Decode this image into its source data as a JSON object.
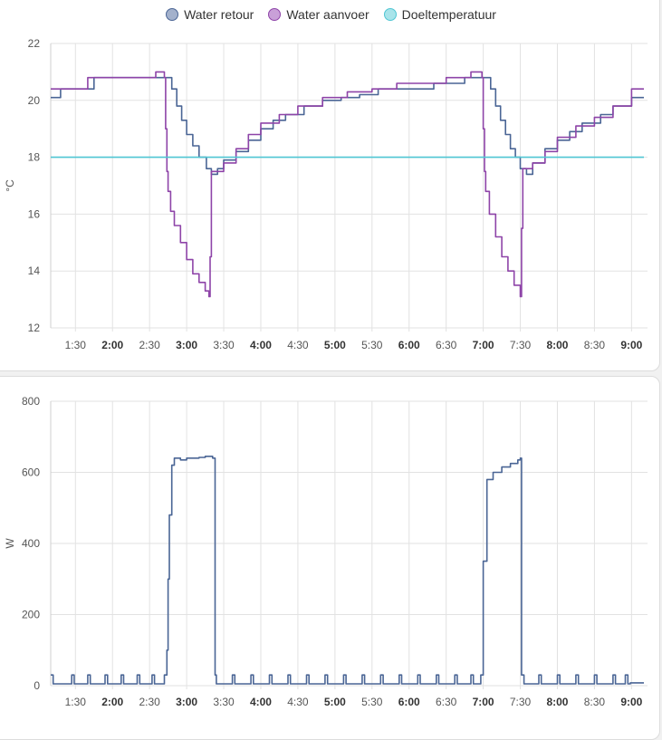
{
  "colors": {
    "retour": "#4a6595",
    "aanvoer": "#8e44a8",
    "doel": "#4fc6d3",
    "power": "#4a6595",
    "grid": "#e2e2e2"
  },
  "chart_data": [
    {
      "type": "line",
      "ylabel": "°C",
      "ylim": [
        12,
        22
      ],
      "yticks": [
        "22",
        "20",
        "18",
        "16",
        "14",
        "12"
      ],
      "xlim": [
        "1:10",
        "9:10"
      ],
      "xticks": [
        {
          "t": "1:30",
          "label": "1:30",
          "major": false
        },
        {
          "t": "2:00",
          "label": "2:00",
          "major": true
        },
        {
          "t": "2:30",
          "label": "2:30",
          "major": false
        },
        {
          "t": "3:00",
          "label": "3:00",
          "major": true
        },
        {
          "t": "3:30",
          "label": "3:30",
          "major": false
        },
        {
          "t": "4:00",
          "label": "4:00",
          "major": true
        },
        {
          "t": "4:30",
          "label": "4:30",
          "major": false
        },
        {
          "t": "5:00",
          "label": "5:00",
          "major": true
        },
        {
          "t": "5:30",
          "label": "5:30",
          "major": false
        },
        {
          "t": "6:00",
          "label": "6:00",
          "major": true
        },
        {
          "t": "6:30",
          "label": "6:30",
          "major": false
        },
        {
          "t": "7:00",
          "label": "7:00",
          "major": true
        },
        {
          "t": "7:30",
          "label": "7:30",
          "major": false
        },
        {
          "t": "8:00",
          "label": "8:00",
          "major": true
        },
        {
          "t": "8:30",
          "label": "8:30",
          "major": false
        },
        {
          "t": "9:00",
          "label": "9:00",
          "major": true
        }
      ],
      "legend": [
        "Water retour",
        "Water aanvoer",
        "Doeltemperatuur"
      ],
      "series": [
        {
          "name": "Water retour",
          "color": "#4a6595",
          "x": [
            "1:10",
            "1:18",
            "1:30",
            "1:45",
            "2:00",
            "2:15",
            "2:30",
            "2:42",
            "2:48",
            "2:52",
            "2:56",
            "3:00",
            "3:05",
            "3:10",
            "3:16",
            "3:20",
            "3:25",
            "3:30",
            "3:40",
            "3:50",
            "4:00",
            "4:10",
            "4:20",
            "4:35",
            "4:50",
            "5:05",
            "5:20",
            "5:35",
            "5:50",
            "6:05",
            "6:20",
            "6:35",
            "6:45",
            "6:55",
            "7:02",
            "7:06",
            "7:10",
            "7:14",
            "7:18",
            "7:22",
            "7:26",
            "7:30",
            "7:35",
            "7:40",
            "7:50",
            "8:00",
            "8:10",
            "8:20",
            "8:35",
            "8:45",
            "9:00",
            "9:10"
          ],
          "y": [
            20.1,
            20.4,
            20.4,
            20.8,
            20.8,
            20.8,
            20.8,
            20.8,
            20.4,
            19.8,
            19.3,
            18.8,
            18.4,
            18.0,
            17.6,
            17.4,
            17.6,
            17.9,
            18.2,
            18.6,
            19.0,
            19.3,
            19.5,
            19.8,
            20.0,
            20.1,
            20.2,
            20.4,
            20.4,
            20.4,
            20.6,
            20.6,
            20.8,
            20.8,
            20.8,
            20.4,
            19.8,
            19.3,
            18.8,
            18.3,
            18.0,
            17.6,
            17.4,
            17.8,
            18.3,
            18.6,
            18.9,
            19.2,
            19.5,
            19.8,
            20.1,
            20.1
          ]
        },
        {
          "name": "Water aanvoer",
          "color": "#8e44a8",
          "x": [
            "1:10",
            "1:20",
            "1:40",
            "2:00",
            "2:20",
            "2:35",
            "2:42",
            "2:43",
            "2:44",
            "2:45",
            "2:47",
            "2:50",
            "2:55",
            "3:00",
            "3:05",
            "3:10",
            "3:15",
            "3:18",
            "3:19",
            "3:20",
            "3:30",
            "3:40",
            "3:50",
            "4:00",
            "4:15",
            "4:30",
            "4:50",
            "5:10",
            "5:30",
            "5:50",
            "6:10",
            "6:30",
            "6:50",
            "6:59",
            "7:00",
            "7:01",
            "7:02",
            "7:05",
            "7:10",
            "7:15",
            "7:20",
            "7:25",
            "7:30",
            "7:31",
            "7:32",
            "7:40",
            "7:50",
            "8:00",
            "8:15",
            "8:30",
            "8:45",
            "9:00",
            "9:10"
          ],
          "y": [
            20.4,
            20.4,
            20.8,
            20.8,
            20.8,
            21.0,
            20.8,
            19.0,
            17.5,
            16.8,
            16.1,
            15.6,
            15.0,
            14.4,
            13.9,
            13.6,
            13.3,
            13.1,
            14.5,
            17.5,
            17.8,
            18.3,
            18.8,
            19.2,
            19.5,
            19.8,
            20.1,
            20.3,
            20.4,
            20.6,
            20.6,
            20.8,
            21.0,
            20.8,
            19.0,
            17.5,
            16.8,
            16.0,
            15.2,
            14.5,
            14.0,
            13.5,
            13.1,
            15.5,
            17.6,
            17.8,
            18.2,
            18.7,
            19.1,
            19.4,
            19.8,
            20.4,
            20.4
          ]
        },
        {
          "name": "Doeltemperatuur",
          "color": "#4fc6d3",
          "x": [
            "1:10",
            "9:10"
          ],
          "y": [
            18,
            18
          ]
        }
      ]
    },
    {
      "type": "line",
      "ylabel": "W",
      "ylim": [
        0,
        800
      ],
      "yticks": [
        "800",
        "600",
        "400",
        "200",
        "0"
      ],
      "xlim": [
        "1:10",
        "9:10"
      ],
      "series": [
        {
          "name": "",
          "color": "#4a6595",
          "x": [
            "1:10",
            "1:12",
            "1:14",
            "1:25",
            "1:27",
            "1:29",
            "1:38",
            "1:40",
            "1:42",
            "1:52",
            "1:54",
            "1:56",
            "2:05",
            "2:07",
            "2:09",
            "2:18",
            "2:20",
            "2:22",
            "2:30",
            "2:32",
            "2:34",
            "2:40",
            "2:42",
            "2:44",
            "2:45",
            "2:46",
            "2:48",
            "2:50",
            "2:55",
            "3:00",
            "3:05",
            "3:10",
            "3:15",
            "3:20",
            "3:21",
            "3:23",
            "3:24",
            "3:35",
            "3:37",
            "3:39",
            "3:50",
            "3:52",
            "3:54",
            "4:05",
            "4:07",
            "4:09",
            "4:20",
            "4:22",
            "4:24",
            "4:35",
            "4:37",
            "4:39",
            "4:50",
            "4:52",
            "4:54",
            "5:05",
            "5:07",
            "5:09",
            "5:20",
            "5:22",
            "5:24",
            "5:35",
            "5:37",
            "5:39",
            "5:50",
            "5:52",
            "5:54",
            "6:05",
            "6:07",
            "6:09",
            "6:20",
            "6:22",
            "6:24",
            "6:35",
            "6:37",
            "6:39",
            "6:48",
            "6:50",
            "6:52",
            "6:56",
            "6:58",
            "7:00",
            "7:03",
            "7:08",
            "7:15",
            "7:22",
            "7:28",
            "7:30",
            "7:31",
            "7:33",
            "7:34",
            "7:45",
            "7:47",
            "7:49",
            "8:00",
            "8:02",
            "8:04",
            "8:15",
            "8:17",
            "8:19",
            "8:30",
            "8:32",
            "8:34",
            "8:45",
            "8:47",
            "8:49",
            "8:55",
            "8:57",
            "8:59",
            "9:10"
          ],
          "y": [
            30,
            5,
            5,
            5,
            30,
            5,
            5,
            30,
            5,
            5,
            30,
            5,
            5,
            30,
            5,
            5,
            30,
            5,
            5,
            30,
            5,
            5,
            30,
            100,
            300,
            480,
            620,
            640,
            635,
            640,
            640,
            642,
            645,
            645,
            640,
            30,
            5,
            5,
            30,
            5,
            5,
            30,
            5,
            5,
            30,
            5,
            5,
            30,
            5,
            5,
            30,
            5,
            5,
            30,
            5,
            5,
            30,
            5,
            5,
            30,
            5,
            5,
            30,
            5,
            5,
            30,
            5,
            5,
            30,
            5,
            5,
            30,
            5,
            5,
            30,
            5,
            5,
            30,
            5,
            5,
            30,
            350,
            580,
            600,
            615,
            625,
            635,
            640,
            30,
            5,
            5,
            30,
            5,
            5,
            30,
            5,
            5,
            30,
            5,
            5,
            30,
            5,
            5,
            30,
            5,
            5,
            30,
            5,
            8,
            8
          ]
        }
      ]
    }
  ]
}
